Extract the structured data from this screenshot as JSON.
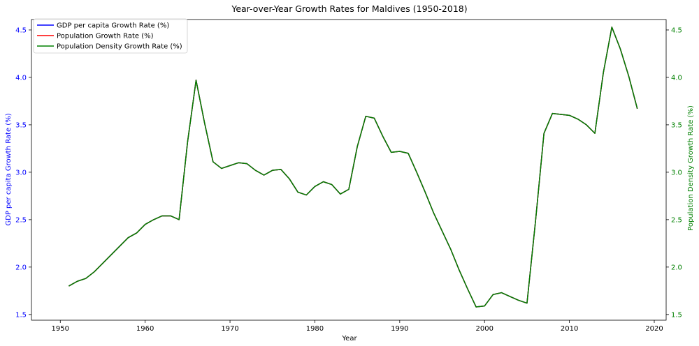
{
  "chart_data": {
    "type": "line",
    "title": "Year-over-Year Growth Rates for Maldives (1950-2018)",
    "xlabel": "Year",
    "ylabel_left": "GDP per capita Growth Rate (%)",
    "ylabel_right": "Population Density Growth Rate (%)",
    "xlim": [
      1946.6,
      2021.4
    ],
    "ylim": [
      1.44,
      4.61
    ],
    "x_ticks": [
      1950,
      1960,
      1970,
      1980,
      1990,
      2000,
      2010,
      2020
    ],
    "y_ticks": [
      1.5,
      2.0,
      2.5,
      3.0,
      3.5,
      4.0,
      4.5
    ],
    "grid": false,
    "legend_position": "top-left",
    "colors": {
      "left_axis": "#0000ff",
      "right_axis": "#008000"
    },
    "x": [
      1951,
      1952,
      1953,
      1954,
      1955,
      1956,
      1957,
      1958,
      1959,
      1960,
      1961,
      1962,
      1963,
      1964,
      1965,
      1966,
      1967,
      1968,
      1969,
      1970,
      1971,
      1972,
      1973,
      1974,
      1975,
      1976,
      1977,
      1978,
      1979,
      1980,
      1981,
      1982,
      1983,
      1984,
      1985,
      1986,
      1987,
      1988,
      1989,
      1990,
      1991,
      1992,
      1993,
      1994,
      1995,
      1996,
      1997,
      1998,
      1999,
      2000,
      2001,
      2002,
      2003,
      2004,
      2005,
      2006,
      2007,
      2008,
      2009,
      2010,
      2011,
      2012,
      2013,
      2014,
      2015,
      2016,
      2017,
      2018
    ],
    "series": [
      {
        "name": "GDP per capita Growth Rate (%)",
        "color": "#0000ff",
        "values": [
          1.8,
          1.85,
          1.88,
          1.95,
          2.04,
          2.13,
          2.22,
          2.31,
          2.36,
          2.45,
          2.5,
          2.54,
          2.54,
          2.5,
          3.32,
          3.97,
          3.52,
          3.11,
          3.04,
          3.07,
          3.1,
          3.09,
          3.02,
          2.97,
          3.02,
          3.03,
          2.93,
          2.79,
          2.76,
          2.85,
          2.9,
          2.87,
          2.77,
          2.82,
          3.27,
          3.59,
          3.57,
          3.38,
          3.21,
          3.22,
          3.2,
          3.0,
          2.79,
          2.57,
          2.38,
          2.19,
          1.97,
          1.77,
          1.58,
          1.59,
          1.71,
          1.73,
          1.69,
          1.65,
          1.62,
          2.48,
          3.41,
          3.62,
          3.61,
          3.6,
          3.56,
          3.5,
          3.41,
          4.05,
          4.53,
          4.3,
          4.01,
          3.67
        ]
      },
      {
        "name": "Population Growth Rate (%)",
        "color": "#ff0000",
        "values": [
          1.8,
          1.85,
          1.88,
          1.95,
          2.04,
          2.13,
          2.22,
          2.31,
          2.36,
          2.45,
          2.5,
          2.54,
          2.54,
          2.5,
          3.32,
          3.97,
          3.52,
          3.11,
          3.04,
          3.07,
          3.1,
          3.09,
          3.02,
          2.97,
          3.02,
          3.03,
          2.93,
          2.79,
          2.76,
          2.85,
          2.9,
          2.87,
          2.77,
          2.82,
          3.27,
          3.59,
          3.57,
          3.38,
          3.21,
          3.22,
          3.2,
          3.0,
          2.79,
          2.57,
          2.38,
          2.19,
          1.97,
          1.77,
          1.58,
          1.59,
          1.71,
          1.73,
          1.69,
          1.65,
          1.62,
          2.48,
          3.41,
          3.62,
          3.61,
          3.6,
          3.56,
          3.5,
          3.41,
          4.05,
          4.53,
          4.3,
          4.01,
          3.67
        ]
      },
      {
        "name": "Population Density Growth Rate (%)",
        "color": "#008000",
        "values": [
          1.8,
          1.85,
          1.88,
          1.95,
          2.04,
          2.13,
          2.22,
          2.31,
          2.36,
          2.45,
          2.5,
          2.54,
          2.54,
          2.5,
          3.32,
          3.97,
          3.52,
          3.11,
          3.04,
          3.07,
          3.1,
          3.09,
          3.02,
          2.97,
          3.02,
          3.03,
          2.93,
          2.79,
          2.76,
          2.85,
          2.9,
          2.87,
          2.77,
          2.82,
          3.27,
          3.59,
          3.57,
          3.38,
          3.21,
          3.22,
          3.2,
          3.0,
          2.79,
          2.57,
          2.38,
          2.19,
          1.97,
          1.77,
          1.58,
          1.59,
          1.71,
          1.73,
          1.69,
          1.65,
          1.62,
          2.48,
          3.41,
          3.62,
          3.61,
          3.6,
          3.56,
          3.5,
          3.41,
          4.05,
          4.53,
          4.3,
          4.01,
          3.67
        ]
      }
    ]
  }
}
